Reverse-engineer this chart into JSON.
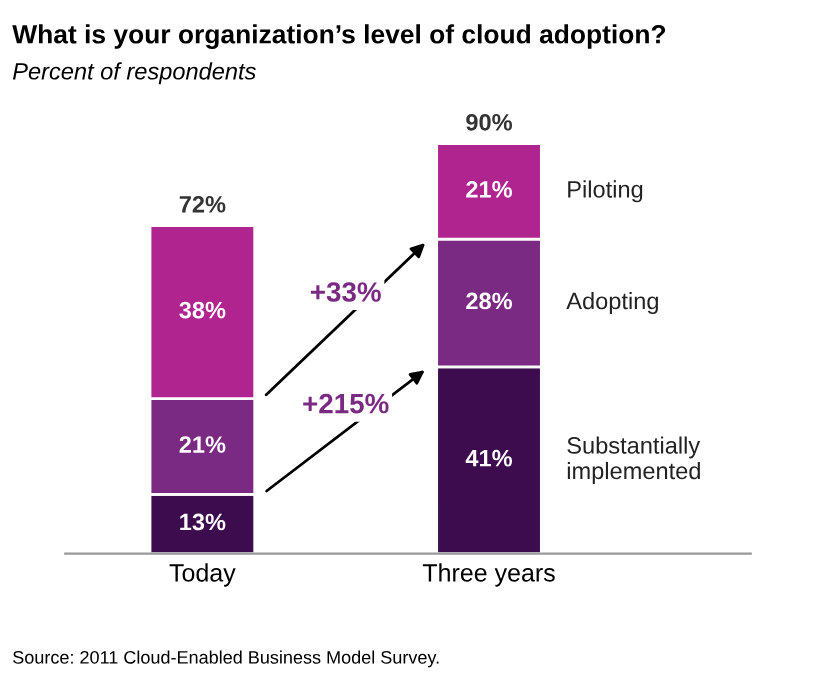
{
  "chart_data": {
    "type": "bar",
    "stacked": true,
    "title": "What is your organization’s level of cloud adoption?",
    "subtitle": "Percent of respondents",
    "categories": [
      "Today",
      "Three years"
    ],
    "series": [
      {
        "name": "Substantially implemented",
        "color": "#3d0c4e",
        "values": [
          13,
          41
        ],
        "value_labels": [
          "13%",
          "41%"
        ]
      },
      {
        "name": "Adopting",
        "color": "#7a2a82",
        "values": [
          21,
          28
        ],
        "value_labels": [
          "21%",
          "28%"
        ]
      },
      {
        "name": "Piloting",
        "color": "#b0248f",
        "values": [
          38,
          21
        ],
        "value_labels": [
          "38%",
          "21%"
        ]
      }
    ],
    "totals": [
      "72%",
      "90%"
    ],
    "annotations": [
      "+33%",
      "+215%",
      "Source: 2011 Cloud-Enabled Business Model Survey."
    ]
  }
}
